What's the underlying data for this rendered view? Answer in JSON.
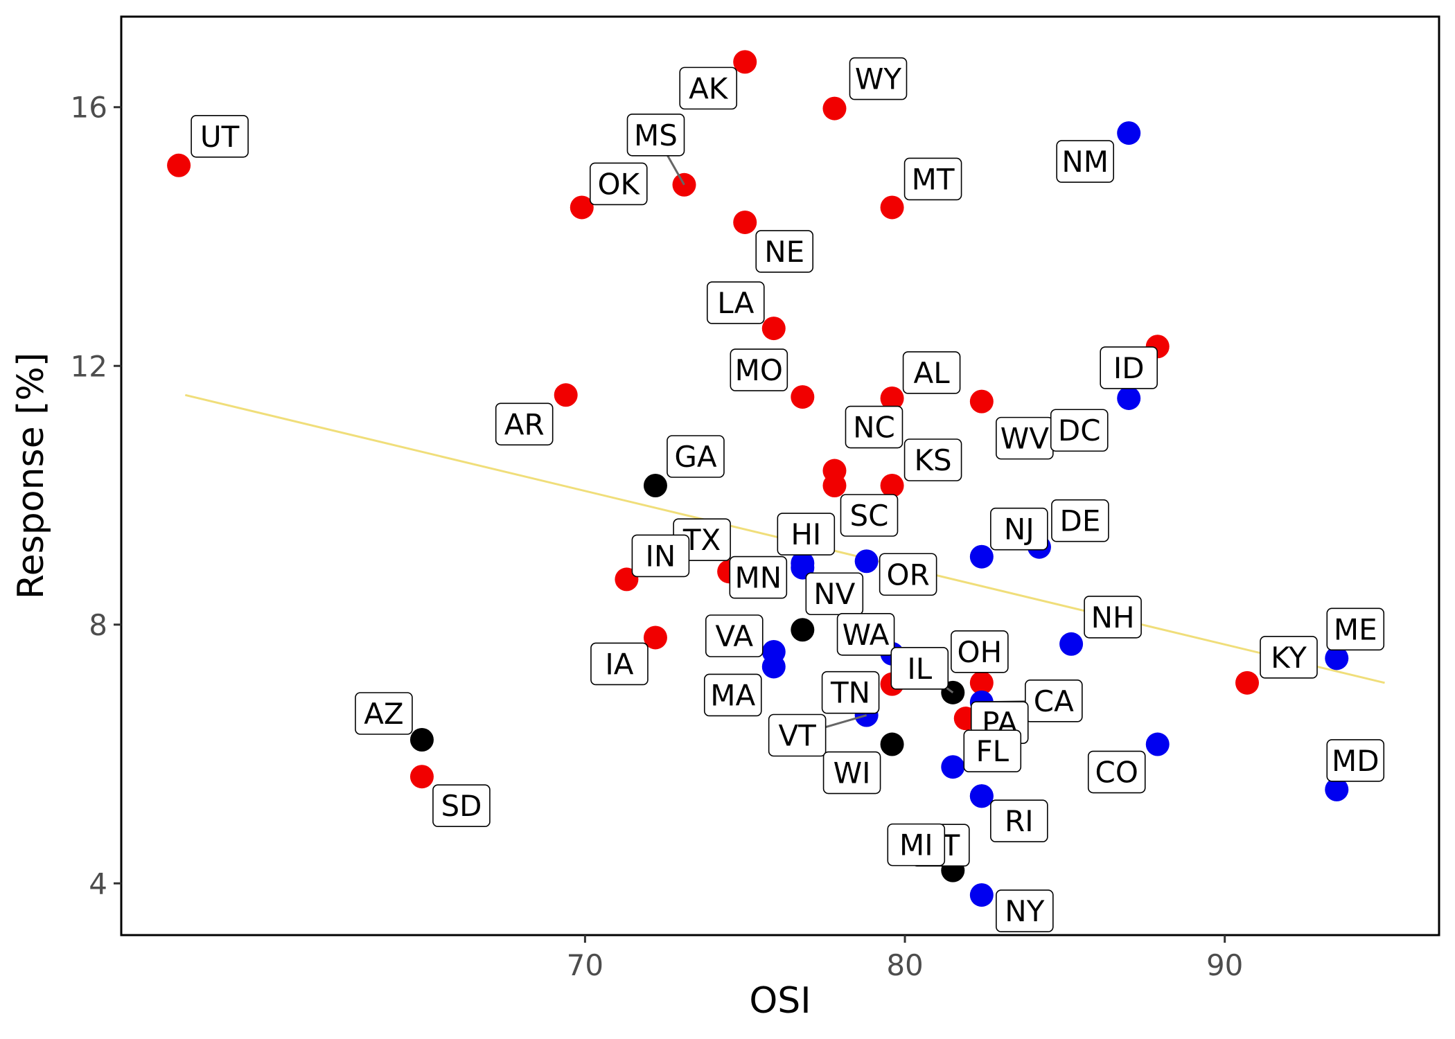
{
  "chart_data": {
    "type": "scatter",
    "title": "",
    "xlabel": "OSI",
    "ylabel": "Response [%]",
    "xlim": [
      55.5,
      96.7
    ],
    "ylim": [
      3.2,
      17.4
    ],
    "x_ticks": [
      70,
      80,
      90
    ],
    "y_ticks": [
      4,
      8,
      12,
      16
    ],
    "grid": false,
    "legend": "none",
    "colors": {
      "red": "#f10000",
      "blue": "#0000f0",
      "black": "#000000",
      "trend": "#f0de7a"
    },
    "trend_line": {
      "x": [
        57.5,
        95.0
      ],
      "y": [
        11.55,
        7.1
      ]
    },
    "points": [
      {
        "label": "UT",
        "x": 57.3,
        "y": 15.1,
        "color": "red"
      },
      {
        "label": "OK",
        "x": 69.9,
        "y": 14.45,
        "color": "red"
      },
      {
        "label": "MS",
        "x": 73.1,
        "y": 14.8,
        "color": "red"
      },
      {
        "label": "AK",
        "x": 75.0,
        "y": 16.7,
        "color": "red"
      },
      {
        "label": "WY",
        "x": 77.8,
        "y": 15.98,
        "color": "red"
      },
      {
        "label": "NE",
        "x": 75.0,
        "y": 14.22,
        "color": "red"
      },
      {
        "label": "MT",
        "x": 79.6,
        "y": 14.45,
        "color": "red"
      },
      {
        "label": "LA",
        "x": 75.9,
        "y": 12.58,
        "color": "red"
      },
      {
        "label": "MO",
        "x": 76.8,
        "y": 11.52,
        "color": "red"
      },
      {
        "label": "AL",
        "x": 79.6,
        "y": 11.5,
        "color": "red"
      },
      {
        "label": "AR",
        "x": 69.4,
        "y": 11.55,
        "color": "red"
      },
      {
        "label": "WV",
        "x": 82.4,
        "y": 11.45,
        "color": "red"
      },
      {
        "label": "ID",
        "x": 87.0,
        "y": 11.5,
        "color": "blue"
      },
      {
        "label": "DC",
        "x": 87.9,
        "y": 12.3,
        "color": "red"
      },
      {
        "label": "NM",
        "x": 87.0,
        "y": 15.6,
        "color": "blue"
      },
      {
        "label": "GA",
        "x": 72.2,
        "y": 10.15,
        "color": "black"
      },
      {
        "label": "NC",
        "x": 77.8,
        "y": 10.38,
        "color": "red"
      },
      {
        "label": "SC",
        "x": 77.8,
        "y": 10.15,
        "color": "red"
      },
      {
        "label": "KS",
        "x": 79.6,
        "y": 10.15,
        "color": "red"
      },
      {
        "label": "NJ",
        "x": 82.4,
        "y": 9.05,
        "color": "blue"
      },
      {
        "label": "DE",
        "x": 84.2,
        "y": 9.2,
        "color": "blue"
      },
      {
        "label": "HI",
        "x": 76.8,
        "y": 8.95,
        "color": "blue"
      },
      {
        "label": "OR",
        "x": 78.8,
        "y": 8.98,
        "color": "blue"
      },
      {
        "label": "TX",
        "x": 74.5,
        "y": 8.82,
        "color": "red"
      },
      {
        "label": "MN",
        "x": 76.8,
        "y": 8.88,
        "color": "blue"
      },
      {
        "label": "IN",
        "x": 71.3,
        "y": 8.7,
        "color": "red"
      },
      {
        "label": "NV",
        "x": 76.8,
        "y": 7.92,
        "color": "black"
      },
      {
        "label": "WA",
        "x": 79.6,
        "y": 7.55,
        "color": "blue"
      },
      {
        "label": "IA",
        "x": 72.2,
        "y": 7.8,
        "color": "red"
      },
      {
        "label": "VA",
        "x": 75.9,
        "y": 7.58,
        "color": "blue"
      },
      {
        "label": "MA",
        "x": 75.9,
        "y": 7.35,
        "color": "blue"
      },
      {
        "label": "NH",
        "x": 85.2,
        "y": 7.7,
        "color": "blue"
      },
      {
        "label": "OH",
        "x": 82.4,
        "y": 7.1,
        "color": "red"
      },
      {
        "label": "IL",
        "x": 81.5,
        "y": 6.95,
        "color": "black"
      },
      {
        "label": "CA",
        "x": 82.4,
        "y": 6.8,
        "color": "blue"
      },
      {
        "label": "TN",
        "x": 79.6,
        "y": 7.08,
        "color": "red"
      },
      {
        "label": "VT",
        "x": 78.8,
        "y": 6.6,
        "color": "blue"
      },
      {
        "label": "PA",
        "x": 81.9,
        "y": 6.55,
        "color": "red"
      },
      {
        "label": "WI",
        "x": 79.6,
        "y": 6.15,
        "color": "black"
      },
      {
        "label": "FL",
        "x": 81.5,
        "y": 5.8,
        "color": "blue"
      },
      {
        "label": "CT",
        "x": 82.4,
        "y": 5.35,
        "color": "blue"
      },
      {
        "label": "RI",
        "x": 82.4,
        "y": 5.35,
        "color": "blue"
      },
      {
        "label": "MI",
        "x": 81.5,
        "y": 4.2,
        "color": "black"
      },
      {
        "label": "NY",
        "x": 82.4,
        "y": 3.82,
        "color": "blue"
      },
      {
        "label": "AZ",
        "x": 64.9,
        "y": 6.22,
        "color": "black"
      },
      {
        "label": "SD",
        "x": 64.9,
        "y": 5.65,
        "color": "red"
      },
      {
        "label": "CO",
        "x": 87.9,
        "y": 6.15,
        "color": "blue"
      },
      {
        "label": "KY",
        "x": 90.7,
        "y": 7.1,
        "color": "red"
      },
      {
        "label": "ME",
        "x": 93.5,
        "y": 7.48,
        "color": "blue"
      },
      {
        "label": "MD",
        "x": 93.5,
        "y": 5.45,
        "color": "blue"
      }
    ]
  }
}
